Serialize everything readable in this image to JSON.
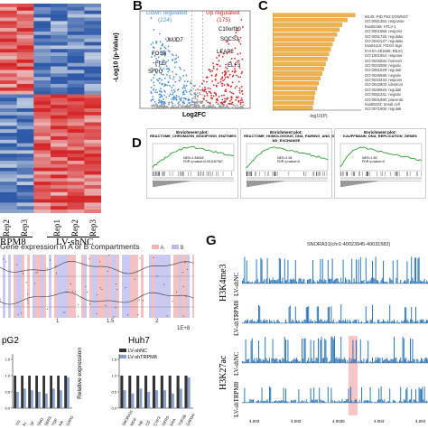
{
  "panels": {
    "A": {
      "heatmap_cols": 6,
      "heatmap_rows": 60,
      "group_labels": [
        "RPM8",
        "LV-shNC"
      ],
      "rep_labels": [
        "Rep2",
        "Rep3",
        "Rep1",
        "Rep2",
        "Rep3"
      ],
      "colors": {
        "high": "#d62728",
        "low": "#2e5aa8",
        "mid": "#f2f2f2"
      }
    },
    "B": {
      "label": "B",
      "down_label": "Down regulated",
      "down_count": "(224)",
      "up_label": "Up regulated",
      "up_count": "(175)",
      "ylabel": "-Log10 (p-Value)",
      "xlabel": "Log2FC",
      "genes": [
        "C10orf10",
        "SOCS3",
        "LEAP2",
        "ELF3",
        "JMJD7",
        "FOSB",
        "FUS",
        "SFPQ"
      ],
      "colors": {
        "down": "#4a90d9",
        "up": "#d62728",
        "ns": "#999999"
      }
    },
    "C": {
      "label": "C",
      "xlabel": "-log10(P)",
      "bar_values": [
        9.5,
        8.6,
        8.0,
        7.7,
        7.4,
        7.1,
        6.9,
        6.7,
        6.5,
        6.3,
        6.1,
        5.9,
        5.7,
        5.5,
        5.3,
        5.1,
        4.9,
        4.8,
        4.7,
        4.6
      ],
      "term_labels": [
        "M145: PID P53 DOWNST",
        "GO:0051384: response",
        "hsa05166: HTLV-1",
        "GO:0001666: respons",
        "GO:0051726: regulatio",
        "GO:0042127: regulatio",
        "hsa04110: FOXO sign",
        "R-HSA-491585: REAC",
        "GO:1901654: respons",
        "GO:0042592: homeos",
        "GO:0043069: negativ",
        "GO:0061029: regulati",
        "GO:0045596: negativ",
        "GO:0043434: respons",
        "GO:0042802: identical",
        "GO:0046626: regulati",
        "GO:0051241: negativ",
        "GO:0001890: placenta",
        "hsa05222: Small cell",
        "GO:0071900: regulati"
      ],
      "color": "#f0b04a"
    },
    "D": {
      "label": "D",
      "plots": [
        {
          "head": "Enrichment plot:",
          "title": "REACTOME_CHROMATIN_MODIFYING_ENZYMES",
          "stats": "NES=1.54818\nFDR q=value=0.001187367"
        },
        {
          "head": "Enrichment plot:",
          "title": "REACTOME_HOMOLOGOUS_DNA_PAIRING_AND_STRA ND_EXCHANGE",
          "stats": "NES=1.94\nFDR q=value=0"
        },
        {
          "head": "Enrichment plot:",
          "title": "KAUFFMANN_DNA_REPLICATION_GENES",
          "stats": "NES=1.89\nFDR q=value=0"
        }
      ]
    },
    "E": {
      "title": "Gene expression in A or B compartments",
      "legend": [
        "A",
        "B"
      ],
      "ticks": [
        "1",
        "1.5",
        "2"
      ],
      "axis_suffix": "1E+8"
    },
    "F": {
      "left_title": "pG2",
      "right_title": "Huh7",
      "ylabel": "Relative expression",
      "legend": [
        "LV-shNC",
        "LV-shTRPM8"
      ],
      "yticks": [
        "0.0",
        "0.5",
        "1.0",
        "1.5"
      ],
      "left_genes": [
        "TIS",
        "KI",
        "SF",
        "SMG",
        "SERS",
        "TOP",
        "KR",
        "GAPO"
      ],
      "right_genes": [
        "SNORA31",
        "MDA",
        "HB",
        "CD",
        "CYP3",
        "GERS",
        "ERA",
        "TOP2B",
        "GAPDH"
      ],
      "right_values_shnc": [
        1.0,
        1.0,
        1.0,
        1.0,
        1.0,
        1.0,
        1.0,
        1.0,
        1.0
      ],
      "right_values_shtrpm8": [
        0.55,
        0.45,
        0.6,
        0.5,
        0.55,
        0.55,
        0.45,
        0.6,
        0.95
      ],
      "left_values_shnc": [
        1.0,
        1.0,
        1.0,
        1.0,
        1.0,
        1.0,
        1.0,
        1.0
      ],
      "left_values_shtrpm8": [
        0.5,
        0.6,
        0.55,
        0.5,
        0.45,
        0.6,
        0.55,
        0.95
      ]
    },
    "G": {
      "label": "G",
      "header": "SNORA31(chr1:40023945-40031582)",
      "track_groups": [
        "H3K4me3",
        "H3K27ac"
      ],
      "tracks": [
        "LV-shNC",
        "LV-shTRPM8",
        "LV-shNC",
        "LV-shTRPM8"
      ],
      "xticks": [
        "4.003",
        "4.003",
        "4.0035",
        "4.004",
        "4.004"
      ],
      "color": "#2f78b8"
    }
  }
}
